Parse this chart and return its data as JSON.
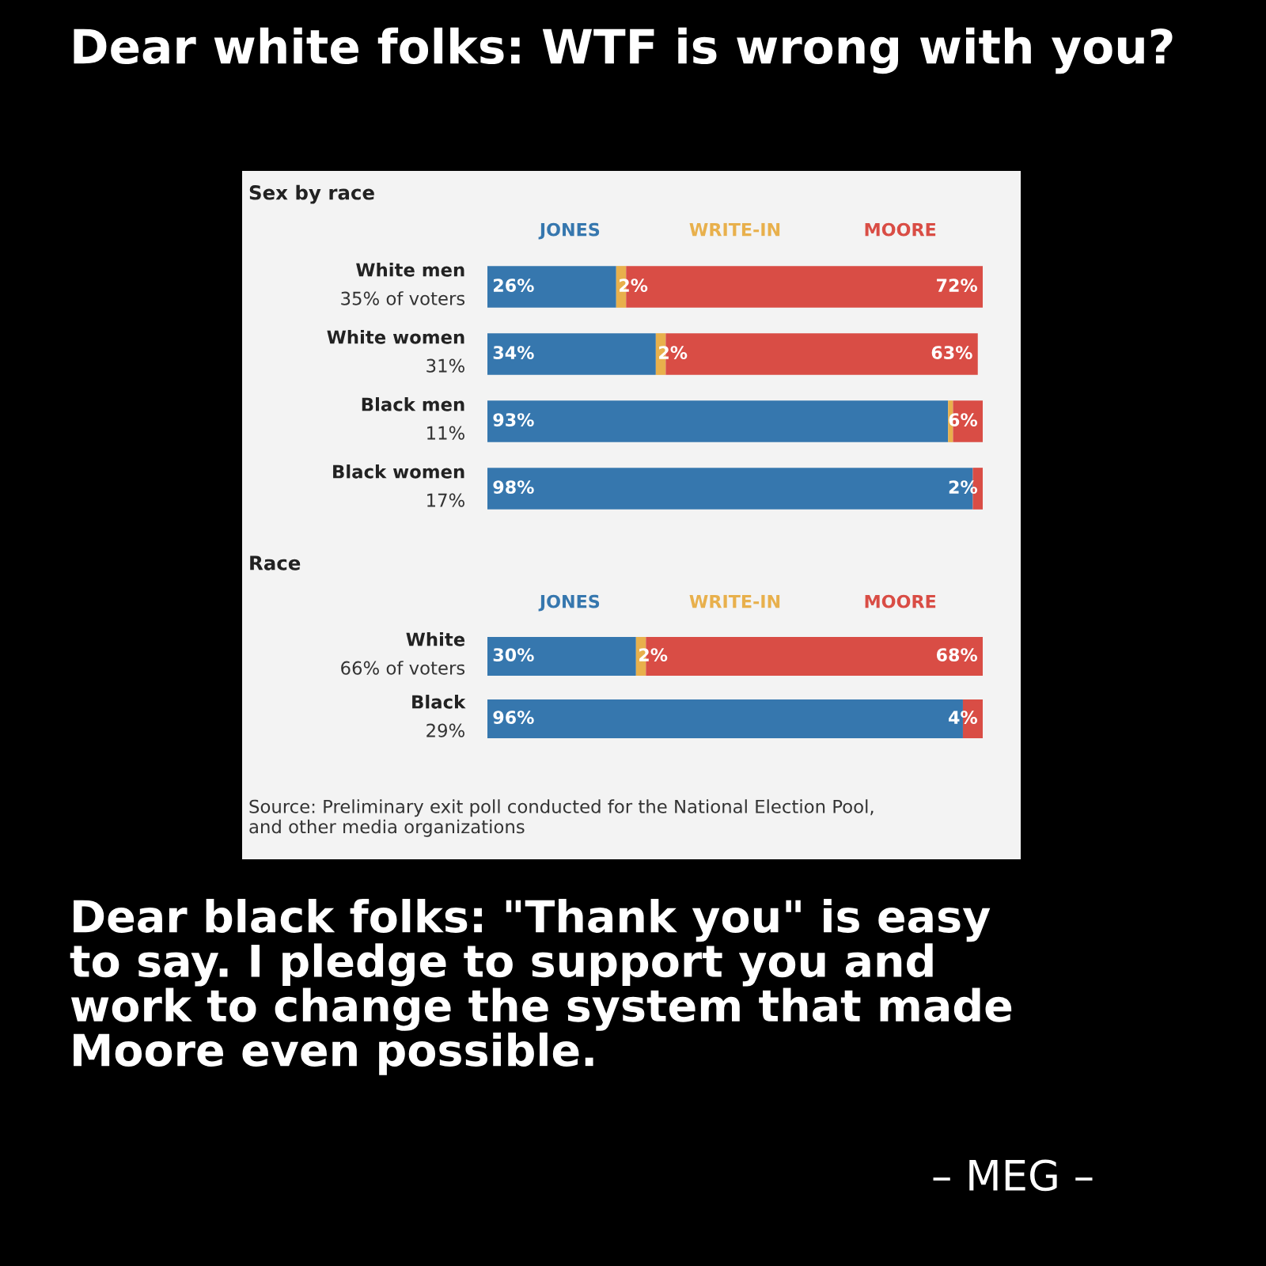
{
  "chart_data": [
    {
      "type": "bar",
      "orientation": "horizontal",
      "stacked": true,
      "title": "Sex by race",
      "categories": [
        "White men\n35% of voters",
        "White women\n31%",
        "Black men\n11%",
        "Black women\n17%"
      ],
      "series": [
        {
          "name": "JONES",
          "color": "#3677ae",
          "values": [
            26,
            34,
            93,
            98
          ],
          "value_labels": [
            "26%",
            "34%",
            "93%",
            "98%"
          ]
        },
        {
          "name": "WRITE-IN",
          "color": "#e8b04c",
          "values": [
            2,
            2,
            1,
            null
          ],
          "value_labels": [
            "2%",
            "2%",
            null,
            null
          ]
        },
        {
          "name": "MOORE",
          "color": "#d94d45",
          "values": [
            72,
            63,
            6,
            2
          ],
          "value_labels": [
            "72%",
            "63%",
            "6%",
            "2%"
          ]
        }
      ],
      "annotations": [
        "Dear white folks: WTF is wrong with you?"
      ]
    },
    {
      "type": "bar",
      "orientation": "horizontal",
      "stacked": true,
      "title": "Race",
      "categories": [
        "White\n66% of voters",
        "Black\n29%"
      ],
      "series": [
        {
          "name": "JONES",
          "color": "#3677ae",
          "values": [
            30,
            96
          ],
          "value_labels": [
            "30%",
            "96%"
          ]
        },
        {
          "name": "WRITE-IN",
          "color": "#e8b04c",
          "values": [
            2,
            null
          ],
          "value_labels": [
            "2%",
            null
          ]
        },
        {
          "name": "MOORE",
          "color": "#d94d45",
          "values": [
            68,
            4
          ],
          "value_labels": [
            "68%",
            "4%"
          ]
        }
      ],
      "annotations": [
        "Source: Preliminary exit poll conducted for the National Election Pool,\nand other media organizations",
        "Dear black folks: \"Thank you\" is easy\nto say. I pledge to support you and\nwork to change the system that made\nMoore even possible.",
        "– MEG –"
      ]
    }
  ]
}
